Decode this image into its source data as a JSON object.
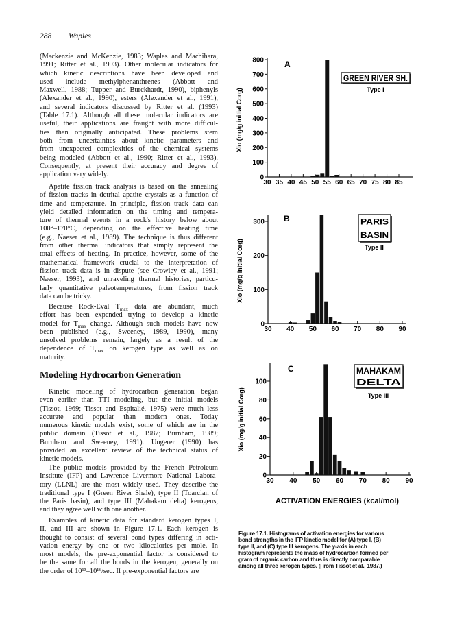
{
  "page_header": {
    "page_number": "288",
    "running_title": "Waples"
  },
  "body": {
    "paragraphs": [
      {
        "indent": false,
        "lines": [
          "(Mackenzie and McKenzie, 1983; Waples and Machihara,",
          "1991; Ritter et al., 1993). Other molecular indicators for",
          "which kinetic descriptions have been developed and",
          "used include methylphenanthrenes (Abbott and",
          "Maxwell, 1988; Tupper and Burckhardt, 1990), biphenyls",
          "(Alexander et al., 1990), esters (Alexander et al., 1991),",
          "and several indicators discussed by Ritter et al. (1993)",
          "(Table 17.1). Although all these molecular indicators are",
          "useful, their applications are fraught with more difficul-",
          "ties than originally anticipated. These problems stem",
          "both from uncertainties about kinetic parameters and",
          "from unexpected complexities of the chemical systems",
          "being modeled (Abbott et al., 1990; Ritter et al., 1993).",
          "Consequently, at present their accuracy and degree of",
          "application vary widely."
        ]
      },
      {
        "indent": true,
        "lines": [
          "Apatite fission track analysis is based on the annealing",
          "of fission tracks in detrital apatite crystals as a function of",
          "time and temperature. In principle, fission track data can",
          "yield detailed information on the timing and tempera-",
          "ture of thermal events in a rock's history below about",
          "100°–170°C, depending on the effective heating time",
          "(e.g., Naeser et al., 1989). The technique is thus different",
          "from other thermal indicators that simply represent the",
          "total effects of heating. In practice, however, some of the",
          "mathematical framework crucial to the interpretation of",
          "fission track data is in dispute (see Crowley et al., 1991;",
          "Naeser, 1993), and unraveling thermal histories, particu-",
          "larly quantitative paleotemperatures, from fission track",
          "data can be tricky."
        ]
      },
      {
        "indent": true,
        "lines": [
          "Because Rock-Eval Tmax data are abundant, much",
          "effort has been expended trying to develop a kinetic",
          "model for Tmax change. Although such models have now",
          "been published (e.g., Sweeney, 1989, 1990), many",
          "unsolved problems remain, largely as a result of the",
          "dependence of Tmax on kerogen type as well as on",
          "maturity."
        ]
      },
      {
        "indent": true,
        "lines": [
          "Kinetic modeling of hydrocarbon generation began",
          "even earlier than TTI modeling, but the initial models",
          "(Tissot, 1969; Tissot and Espitalié, 1975) were much less",
          "accurate and popular than modern ones. Today",
          "numerous kinetic models exist, some of which are in the",
          "public domain (Tissot et al., 1987; Burnham, 1989;",
          "Burnham and Sweeney, 1991). Ungerer (1990) has",
          "provided an excellent review of the technical status of",
          "kinetic models."
        ]
      },
      {
        "indent": true,
        "lines": [
          "The public models provided by the French Petroleum",
          "Institute (IFP) and Lawrence Livermore National Labora-",
          "tory (LLNL) are the most widely used. They describe the",
          "traditional type I (Green River Shale), type II (Toarcian of",
          "the Paris basin), and type III (Mahakam delta) kerogens,",
          "and they agree well with one another."
        ]
      },
      {
        "indent": true,
        "lines": [
          "Examples of kinetic data for standard kerogen types I,",
          "II, and III are shown in Figure 17.1. Each kerogen is",
          "thought to consist of several bond types differing in acti-",
          "vation energy by one or two kilocalories per mole. In",
          "most models, the pre-exponential factor is considered to",
          "be the same for all the bonds in the kerogen, generally on",
          "the order of 10¹³–10¹⁶/sec. If pre-exponential factors are"
        ]
      }
    ],
    "section_heading": "Modeling Hydrocarbon Generation"
  },
  "chart_data": [
    {
      "type": "bar",
      "panel_letter": "A",
      "legend_box": [
        "GREEN RIVER SH."
      ],
      "kerogen_type": "Type I",
      "ylabel": "Xio (mg/g initial Corg)",
      "xlabel": "",
      "ylim": [
        0,
        800
      ],
      "yticks": [
        0,
        100,
        200,
        300,
        400,
        500,
        600,
        700,
        800
      ],
      "xticks": [
        30,
        35,
        40,
        45,
        50,
        55,
        60,
        65,
        70,
        75,
        80,
        85
      ],
      "xlim": [
        30,
        90
      ],
      "x": [
        49,
        51,
        53,
        55,
        57,
        59
      ],
      "values": [
        5,
        15,
        22,
        800,
        8,
        14
      ]
    },
    {
      "type": "bar",
      "panel_letter": "B",
      "legend_box": [
        "PARIS",
        "BASIN"
      ],
      "kerogen_type": "Type II",
      "ylabel": "Xio (mg/g initial Corg)",
      "xlabel": "",
      "ylim": [
        0,
        320
      ],
      "yticks": [
        0,
        100,
        200,
        300
      ],
      "xticks": [
        30,
        40,
        50,
        60,
        70,
        80,
        90
      ],
      "xlim": [
        30,
        92
      ],
      "x": [
        40,
        42,
        48,
        50,
        52,
        54,
        56,
        58,
        60,
        62
      ],
      "values": [
        5,
        3,
        10,
        30,
        150,
        320,
        65,
        20,
        8,
        4
      ]
    },
    {
      "type": "bar",
      "panel_letter": "C",
      "legend_box": [
        "MAHAKAM",
        "DELTA"
      ],
      "kerogen_type": "Type III",
      "ylabel": "Xio (mg/g initial Corg)",
      "xlabel": "ACTIVATION ENERGIES (kcal/mol)",
      "ylim": [
        0,
        118
      ],
      "yticks": [
        0,
        20,
        40,
        60,
        80,
        100
      ],
      "xticks": [
        30,
        40,
        50,
        60,
        70,
        80,
        90
      ],
      "xlim": [
        30,
        91
      ],
      "x": [
        46,
        48,
        50,
        52,
        54,
        56,
        58,
        60,
        62,
        64,
        67,
        70
      ],
      "values": [
        3,
        15,
        2,
        62,
        118,
        62,
        22,
        15,
        8,
        5,
        4,
        3
      ]
    }
  ],
  "caption": {
    "lines": [
      "Figure 17.1. Histograms of activation energies for various",
      "bond strengths in the IFP kinetic model for (A) type I, (B)",
      "type II, and (C) type III kerogens. The y-axis in each",
      "histogram represents the mass of hydrocarbon formed per",
      "gram of organic carbon and thus is directly comparable",
      "among all three kerogen types. (From Tissot et al., 1987.)"
    ]
  }
}
